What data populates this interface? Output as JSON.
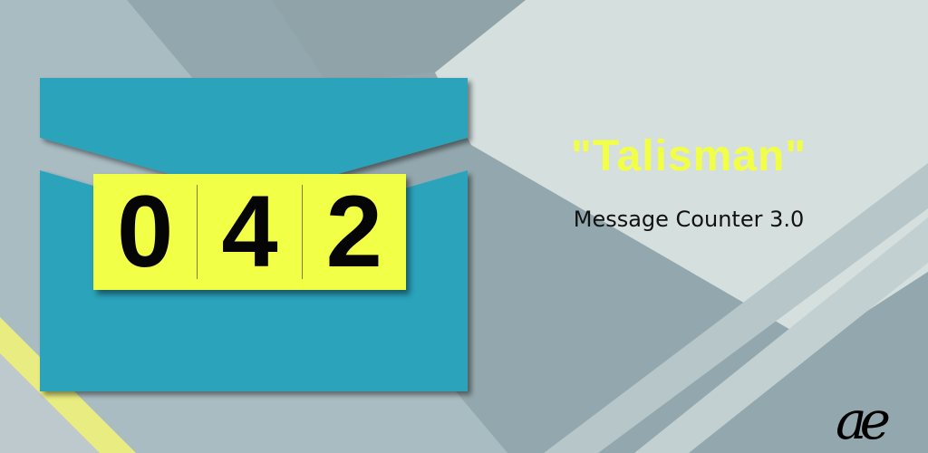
{
  "counter": {
    "digits": [
      "0",
      "4",
      "2"
    ]
  },
  "title": "\"Talisman\"",
  "subtitle": "Message Counter 3.0",
  "logo": "ae",
  "colors": {
    "envelope": "#2ba3bb",
    "counter_bg": "#f2ff47",
    "title": "#f2ff47",
    "background": "#a9bcc2",
    "stripe": "#e9ec80"
  }
}
